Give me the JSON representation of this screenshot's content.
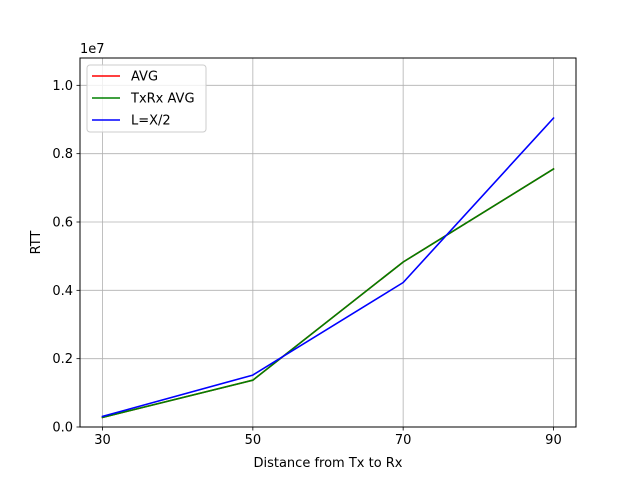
{
  "chart_data": {
    "type": "line",
    "title": "",
    "xlabel": "Distance from Tx to Rx",
    "ylabel": "RTT",
    "y_offset_label": "1e7",
    "x": [
      30,
      50,
      70,
      90
    ],
    "xticks": [
      "30",
      "50",
      "70",
      "90"
    ],
    "xlim": [
      27,
      93
    ],
    "yticks": [
      0.0,
      0.2,
      0.4,
      0.6,
      0.8,
      1.0
    ],
    "ytick_labels": [
      "0.0",
      "0.2",
      "0.4",
      "0.6",
      "0.8",
      "1.0"
    ],
    "ylim": [
      0.0,
      1.08
    ],
    "grid": true,
    "legend_position": "upper-left",
    "series": [
      {
        "name": "AVG",
        "color": "#ff0000",
        "values": [
          0.028,
          0.137,
          0.483,
          0.755
        ]
      },
      {
        "name": "TxRx AVG",
        "color": "#008000",
        "values": [
          0.028,
          0.137,
          0.483,
          0.755
        ]
      },
      {
        "name": "L=X/2",
        "color": "#0000ff",
        "values": [
          0.031,
          0.152,
          0.423,
          0.904
        ]
      }
    ]
  }
}
